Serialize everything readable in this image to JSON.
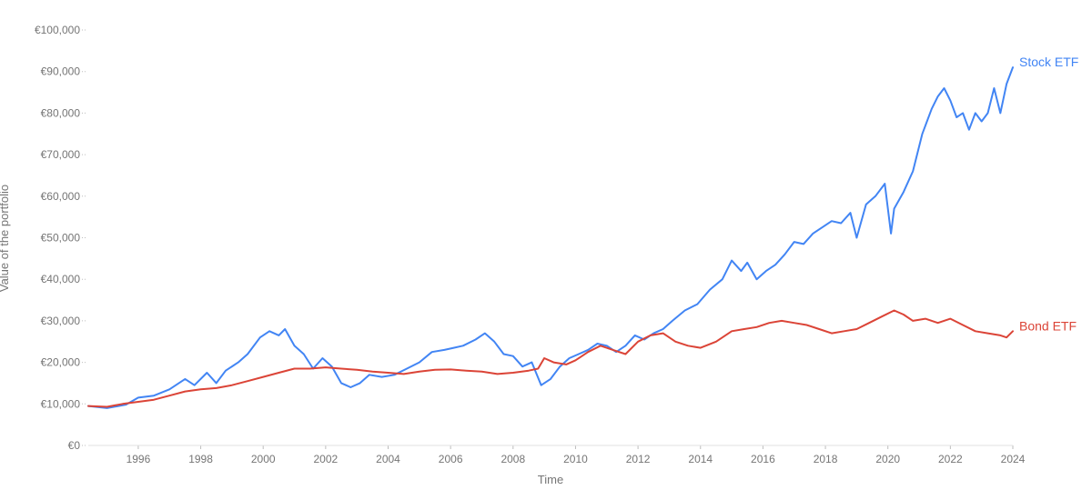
{
  "chart_data": {
    "type": "line",
    "title": "",
    "xlabel": "Time",
    "ylabel": "Value of the portfolio",
    "xlim": [
      1994.4,
      2024.0
    ],
    "ylim": [
      0,
      100000
    ],
    "grid": false,
    "legend": "end-of-line labels",
    "x_ticks": [
      1996,
      1998,
      2000,
      2002,
      2004,
      2006,
      2008,
      2010,
      2012,
      2014,
      2016,
      2018,
      2020,
      2022,
      2024
    ],
    "x_tick_labels": [
      "1996",
      "1998",
      "2000",
      "2002",
      "2004",
      "2006",
      "2008",
      "2010",
      "2012",
      "2014",
      "2016",
      "2018",
      "2020",
      "2022",
      "2024"
    ],
    "y_ticks": [
      0,
      10000,
      20000,
      30000,
      40000,
      50000,
      60000,
      70000,
      80000,
      90000,
      100000
    ],
    "y_tick_labels": [
      "€0",
      "€10,000",
      "€20,000",
      "€30,000",
      "€40,000",
      "€50,000",
      "€60,000",
      "€70,000",
      "€80,000",
      "€90,000",
      "€100,000"
    ],
    "series": [
      {
        "name": "Stock ETF",
        "color": "#4285f4",
        "x": [
          1994.4,
          1995.0,
          1995.6,
          1996.0,
          1996.5,
          1997.0,
          1997.5,
          1997.8,
          1998.2,
          1998.5,
          1998.8,
          1999.2,
          1999.5,
          1999.9,
          2000.2,
          2000.5,
          2000.7,
          2001.0,
          2001.3,
          2001.6,
          2001.9,
          2002.2,
          2002.5,
          2002.8,
          2003.1,
          2003.4,
          2003.8,
          2004.2,
          2004.6,
          2005.0,
          2005.4,
          2005.8,
          2006.1,
          2006.4,
          2006.8,
          2007.1,
          2007.4,
          2007.7,
          2008.0,
          2008.3,
          2008.6,
          2008.9,
          2009.2,
          2009.5,
          2009.8,
          2010.1,
          2010.4,
          2010.7,
          2011.0,
          2011.3,
          2011.6,
          2011.9,
          2012.2,
          2012.5,
          2012.8,
          2013.1,
          2013.5,
          2013.9,
          2014.3,
          2014.7,
          2015.0,
          2015.3,
          2015.5,
          2015.8,
          2016.1,
          2016.4,
          2016.7,
          2017.0,
          2017.3,
          2017.6,
          2017.9,
          2018.2,
          2018.5,
          2018.8,
          2019.0,
          2019.3,
          2019.6,
          2019.9,
          2020.1,
          2020.2,
          2020.5,
          2020.8,
          2021.1,
          2021.4,
          2021.6,
          2021.8,
          2022.0,
          2022.2,
          2022.4,
          2022.6,
          2022.8,
          2023.0,
          2023.2,
          2023.4,
          2023.6,
          2023.8,
          2024.0
        ],
        "values": [
          9500,
          9000,
          9800,
          11500,
          12000,
          13500,
          16000,
          14500,
          17500,
          15000,
          18000,
          20000,
          22000,
          26000,
          27500,
          26500,
          28000,
          24000,
          22000,
          18500,
          21000,
          19000,
          15000,
          14000,
          15000,
          17000,
          16500,
          17000,
          18500,
          20000,
          22500,
          23000,
          23500,
          24000,
          25500,
          27000,
          25000,
          22000,
          21500,
          19000,
          20000,
          14500,
          16000,
          19000,
          21000,
          22000,
          23000,
          24500,
          24000,
          22500,
          24000,
          26500,
          25500,
          27000,
          28000,
          30000,
          32500,
          34000,
          37500,
          40000,
          44500,
          42000,
          44000,
          40000,
          42000,
          43500,
          46000,
          49000,
          48500,
          51000,
          52500,
          54000,
          53500,
          56000,
          50000,
          58000,
          60000,
          63000,
          51000,
          57000,
          61000,
          66000,
          75000,
          81000,
          84000,
          86000,
          83000,
          79000,
          80000,
          76000,
          80000,
          78000,
          80000,
          86000,
          80000,
          87000,
          91000
        ]
      },
      {
        "name": "Bond ETF",
        "color": "#db4437",
        "x": [
          1994.4,
          1995.0,
          1995.5,
          1996.0,
          1996.5,
          1997.0,
          1997.5,
          1998.0,
          1998.5,
          1999.0,
          1999.5,
          2000.0,
          2000.5,
          2001.0,
          2001.5,
          2002.0,
          2002.5,
          2003.0,
          2003.5,
          2004.0,
          2004.5,
          2005.0,
          2005.5,
          2006.0,
          2006.5,
          2007.0,
          2007.5,
          2008.0,
          2008.5,
          2008.8,
          2009.0,
          2009.3,
          2009.7,
          2010.0,
          2010.4,
          2010.8,
          2011.2,
          2011.6,
          2012.0,
          2012.4,
          2012.8,
          2013.2,
          2013.6,
          2014.0,
          2014.5,
          2015.0,
          2015.4,
          2015.8,
          2016.2,
          2016.6,
          2017.0,
          2017.4,
          2017.8,
          2018.2,
          2018.6,
          2019.0,
          2019.4,
          2019.8,
          2020.2,
          2020.5,
          2020.8,
          2021.2,
          2021.6,
          2022.0,
          2022.4,
          2022.8,
          2023.2,
          2023.6,
          2023.8,
          2024.0
        ],
        "values": [
          9500,
          9300,
          10000,
          10500,
          11000,
          12000,
          13000,
          13500,
          13800,
          14500,
          15500,
          16500,
          17500,
          18500,
          18500,
          18800,
          18500,
          18200,
          17800,
          17500,
          17200,
          17800,
          18200,
          18300,
          18000,
          17800,
          17200,
          17500,
          18000,
          18500,
          21000,
          20000,
          19500,
          20500,
          22500,
          24000,
          23000,
          22000,
          25000,
          26500,
          27000,
          25000,
          24000,
          23500,
          25000,
          27500,
          28000,
          28500,
          29500,
          30000,
          29500,
          29000,
          28000,
          27000,
          27500,
          28000,
          29500,
          31000,
          32500,
          31500,
          30000,
          30500,
          29500,
          30500,
          29000,
          27500,
          27000,
          26500,
          26000,
          27500
        ]
      }
    ]
  }
}
